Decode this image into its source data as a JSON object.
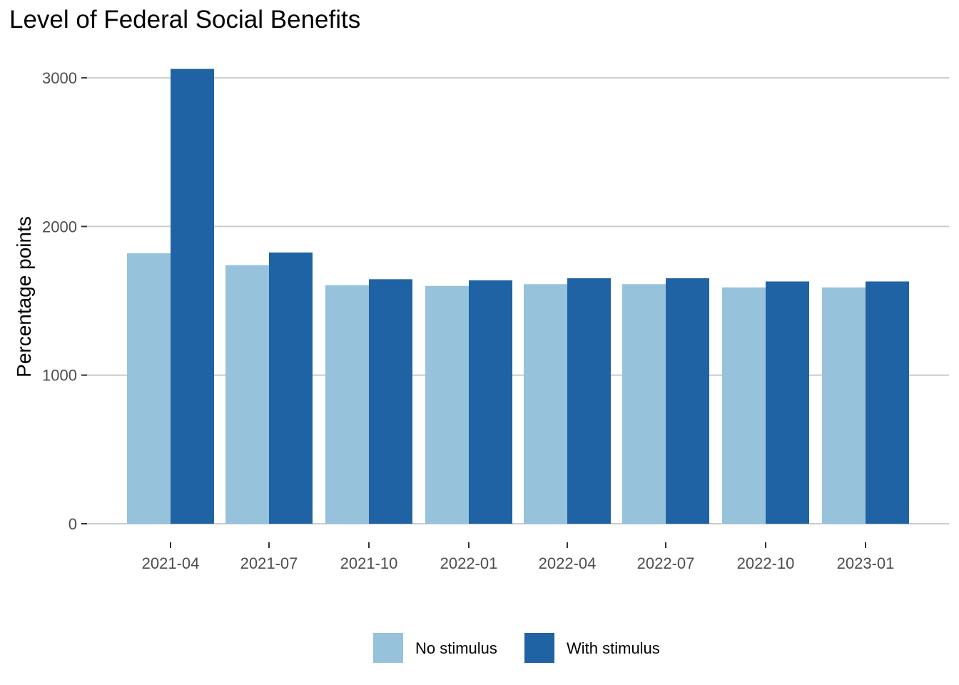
{
  "chart_data": {
    "type": "bar",
    "title": "Level of Federal Social Benefits",
    "xlabel": "",
    "ylabel": "Percentage points",
    "categories": [
      "2021-04",
      "2021-07",
      "2021-10",
      "2022-01",
      "2022-04",
      "2022-07",
      "2022-10",
      "2023-01"
    ],
    "series": [
      {
        "name": "No stimulus",
        "color": "#97c2db",
        "values": [
          1820,
          1740,
          1605,
          1600,
          1612,
          1612,
          1590,
          1590
        ]
      },
      {
        "name": "With stimulus",
        "color": "#1f63a5",
        "values": [
          3060,
          1825,
          1645,
          1638,
          1652,
          1652,
          1630,
          1630
        ]
      }
    ],
    "ylim": [
      0,
      3060
    ],
    "yticks": [
      0,
      1000,
      2000,
      3000
    ],
    "ytick_labels": [
      "0",
      "1000",
      "2000",
      "3000"
    ],
    "grid": "horizontal",
    "legend_position": "bottom"
  }
}
